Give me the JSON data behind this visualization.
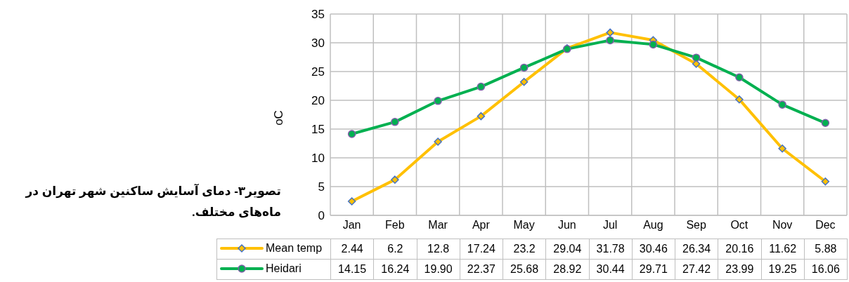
{
  "chart_data": {
    "type": "line",
    "ylabel": "oC",
    "categories": [
      "Jan",
      "Feb",
      "Mar",
      "Apr",
      "May",
      "Jun",
      "Jul",
      "Aug",
      "Sep",
      "Oct",
      "Nov",
      "Dec"
    ],
    "series": [
      {
        "name": "Mean temp",
        "color": "#ffc000",
        "marker": "diamond",
        "values": [
          2.44,
          6.2,
          12.8,
          17.24,
          23.2,
          29.04,
          31.78,
          30.46,
          26.34,
          20.16,
          11.62,
          5.88
        ],
        "value_labels": [
          "2.44",
          "6.2",
          "12.8",
          "17.24",
          "23.2",
          "29.04",
          "31.78",
          "30.46",
          "26.34",
          "20.16",
          "11.62",
          "5.88"
        ]
      },
      {
        "name": "Heidari",
        "color": "#00b050",
        "marker": "circle",
        "values": [
          14.15,
          16.24,
          19.9,
          22.37,
          25.68,
          28.92,
          30.44,
          29.71,
          27.42,
          23.99,
          19.25,
          16.06
        ],
        "value_labels": [
          "14.15",
          "16.24",
          "19.90",
          "22.37",
          "25.68",
          "28.92",
          "30.44",
          "29.71",
          "27.42",
          "23.99",
          "19.25",
          "16.06"
        ]
      }
    ],
    "ylim": [
      0,
      35
    ],
    "yticks": [
      0,
      5,
      10,
      15,
      20,
      25,
      30,
      35
    ],
    "grid": true,
    "legend": "bottom",
    "line_style": "solid",
    "annotations": [
      "تصویر۳- دمای آسایش ساکنین شهر تهران در ماه‌های مختلف."
    ]
  }
}
